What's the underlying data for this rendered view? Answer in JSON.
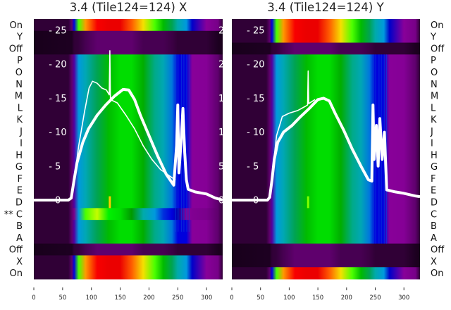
{
  "chart_data": [
    {
      "type": "heatmap",
      "title": "3.4 (Tile124=124) X",
      "row_labels_side": "left",
      "row_labels": [
        "On",
        "Y",
        "Off",
        "P",
        "O",
        "N",
        "M",
        "L",
        "K",
        "J",
        "I",
        "H",
        "G",
        "F",
        "E",
        "D",
        "** C",
        "B",
        "A",
        "Off",
        "X",
        "On"
      ],
      "row_profiles": [
        "on",
        "off",
        "off",
        "normal",
        "normal",
        "normal",
        "normal",
        "normal",
        "normal",
        "normal",
        "normal",
        "normal",
        "normal",
        "normal",
        "normal",
        "normal",
        "c_variant",
        "normal",
        "normal",
        "off",
        "on",
        "on"
      ],
      "xlim": [
        0,
        328
      ],
      "xticks": [
        "0",
        "50",
        "100",
        "150",
        "200",
        "250",
        "300"
      ],
      "overlay_ylim": [
        0,
        27
      ],
      "overlay_yticks": [
        "0",
        "5",
        "10",
        "15",
        "20",
        "25"
      ],
      "marker": {
        "x": 132,
        "row": "D"
      },
      "series": [
        {
          "name": "thick-trace",
          "width": 4,
          "points": [
            [
              0,
              0
            ],
            [
              60,
              0
            ],
            [
              65,
              0.3
            ],
            [
              70,
              3
            ],
            [
              75,
              5.5
            ],
            [
              85,
              8.5
            ],
            [
              95,
              10.5
            ],
            [
              110,
              12.5
            ],
            [
              125,
              14
            ],
            [
              140,
              15.3
            ],
            [
              155,
              16.3
            ],
            [
              165,
              16.2
            ],
            [
              175,
              14.8
            ],
            [
              185,
              12.5
            ],
            [
              200,
              9.5
            ],
            [
              215,
              6.5
            ],
            [
              230,
              3.8
            ],
            [
              243,
              2.2
            ],
            [
              248,
              8
            ],
            [
              250,
              14
            ],
            [
              252,
              4
            ],
            [
              256,
              9
            ],
            [
              259,
              13.5
            ],
            [
              262,
              7
            ],
            [
              265,
              3
            ],
            [
              268,
              1.6
            ],
            [
              280,
              1.2
            ],
            [
              300,
              0.9
            ],
            [
              315,
              0.3
            ],
            [
              328,
              0
            ]
          ]
        },
        {
          "name": "thin-trace",
          "width": 1.6,
          "points": [
            [
              60,
              0
            ],
            [
              66,
              0.5
            ],
            [
              70,
              3
            ],
            [
              78,
              8
            ],
            [
              88,
              13
            ],
            [
              96,
              16.5
            ],
            [
              102,
              17.5
            ],
            [
              110,
              17.2
            ],
            [
              118,
              16.5
            ],
            [
              126,
              16.2
            ],
            [
              131,
              15.5
            ],
            [
              132,
              22
            ],
            [
              133,
              14.8
            ],
            [
              145,
              14.3
            ],
            [
              160,
              12.5
            ],
            [
              175,
              10.5
            ],
            [
              190,
              8
            ],
            [
              205,
              6
            ],
            [
              220,
              4.5
            ],
            [
              240,
              3.3
            ],
            [
              246,
              3
            ]
          ]
        }
      ]
    },
    {
      "type": "heatmap",
      "title": "3.4 (Tile124=124) Y",
      "row_labels_side": "right",
      "row_labels": [
        "On",
        "Y",
        "Off",
        "P",
        "O",
        "N",
        "M",
        "L",
        "K",
        "J",
        "I",
        "H",
        "G",
        "F",
        "E",
        "D",
        "C",
        "B",
        "A",
        "Off",
        "X",
        "On"
      ],
      "row_profiles": [
        "on",
        "on",
        "off",
        "normal",
        "normal",
        "normal",
        "normal",
        "normal",
        "normal",
        "normal",
        "normal",
        "normal",
        "normal",
        "normal",
        "normal",
        "normal",
        "normal",
        "normal",
        "normal",
        "off",
        "off",
        "on"
      ],
      "xlim": [
        0,
        328
      ],
      "xticks": [
        "0",
        "50",
        "100",
        "150",
        "200",
        "250",
        "300"
      ],
      "overlay_ylim": [
        0,
        27
      ],
      "overlay_yticks": [
        "0",
        "5",
        "10",
        "15",
        "20",
        "25"
      ],
      "marker": {
        "x": 133,
        "row": "D"
      },
      "series": [
        {
          "name": "thick-trace",
          "width": 4,
          "points": [
            [
              0,
              0
            ],
            [
              62,
              0
            ],
            [
              66,
              0.4
            ],
            [
              70,
              3
            ],
            [
              74,
              6
            ],
            [
              80,
              8.5
            ],
            [
              90,
              10
            ],
            [
              105,
              11
            ],
            [
              120,
              12.3
            ],
            [
              135,
              13.5
            ],
            [
              150,
              14.8
            ],
            [
              160,
              15
            ],
            [
              170,
              14.6
            ],
            [
              180,
              12.8
            ],
            [
              195,
              10.3
            ],
            [
              210,
              7.5
            ],
            [
              225,
              5
            ],
            [
              238,
              3
            ],
            [
              244,
              2.8
            ],
            [
              246,
              14
            ],
            [
              248,
              6
            ],
            [
              252,
              11
            ],
            [
              255,
              5
            ],
            [
              258,
              12
            ],
            [
              262,
              6
            ],
            [
              266,
              10
            ],
            [
              270,
              1.5
            ],
            [
              285,
              1.2
            ],
            [
              300,
              1
            ],
            [
              320,
              0.6
            ],
            [
              328,
              0.5
            ]
          ]
        },
        {
          "name": "thin-trace",
          "width": 1.6,
          "points": [
            [
              66,
              0.5
            ],
            [
              72,
              5
            ],
            [
              78,
              9.5
            ],
            [
              88,
              12.3
            ],
            [
              100,
              12.8
            ],
            [
              115,
              13.2
            ],
            [
              128,
              13.8
            ],
            [
              132,
              14
            ],
            [
              133,
              19
            ],
            [
              134,
              14.2
            ],
            [
              145,
              14.8
            ]
          ]
        }
      ]
    }
  ]
}
